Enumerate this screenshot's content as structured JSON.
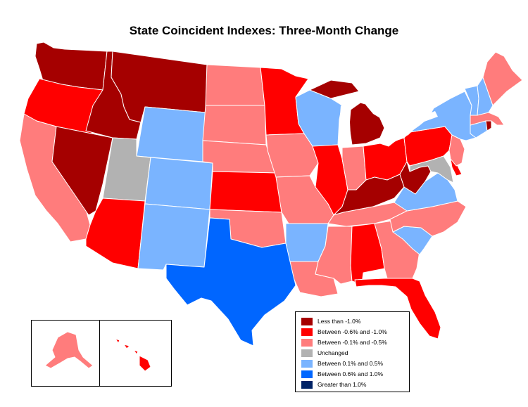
{
  "title": "State Coincident Indexes: Three-Month Change",
  "legend": {
    "items": [
      {
        "key": "lt_-1.0",
        "label": "Less than -1.0%",
        "color": "#a50000"
      },
      {
        "key": "-0.6_-1.0",
        "label": "Between -0.6% and -1.0%",
        "color": "#ff0000"
      },
      {
        "key": "-0.1_-0.5",
        "label": "Between -0.1% and -0.5%",
        "color": "#ff7c7c"
      },
      {
        "key": "unchanged",
        "label": "Unchanged",
        "color": "#b2b2b2"
      },
      {
        "key": "0.1_0.5",
        "label": "Between 0.1% and 0.5%",
        "color": "#7ab4ff"
      },
      {
        "key": "0.6_1.0",
        "label": "Between 0.6% and 1.0%",
        "color": "#0066ff"
      },
      {
        "key": "gt_1.0",
        "label": "Greater than 1.0%",
        "color": "#002266"
      }
    ]
  },
  "states": {
    "WA": "lt_-1.0",
    "OR": "-0.6_-1.0",
    "CA": "-0.1_-0.5",
    "NV": "lt_-1.0",
    "ID": "lt_-1.0",
    "MT": "lt_-1.0",
    "WY": "0.1_0.5",
    "UT": "unchanged",
    "AZ": "-0.6_-1.0",
    "CO": "0.1_0.5",
    "NM": "0.1_0.5",
    "ND": "-0.1_-0.5",
    "SD": "-0.1_-0.5",
    "NE": "-0.1_-0.5",
    "KS": "-0.6_-1.0",
    "OK": "-0.1_-0.5",
    "TX": "0.6_1.0",
    "MN": "-0.6_-1.0",
    "IA": "-0.1_-0.5",
    "MO": "-0.1_-0.5",
    "AR": "0.1_0.5",
    "LA": "-0.1_-0.5",
    "WI": "0.1_0.5",
    "IL": "-0.6_-1.0",
    "MI": "lt_-1.0",
    "IN": "-0.1_-0.5",
    "OH": "-0.6_-1.0",
    "KY": "lt_-1.0",
    "TN": "-0.1_-0.5",
    "MS": "-0.1_-0.5",
    "AL": "-0.6_-1.0",
    "GA": "-0.1_-0.5",
    "FL": "-0.6_-1.0",
    "SC": "0.1_0.5",
    "NC": "-0.1_-0.5",
    "VA": "0.1_0.5",
    "WV": "lt_-1.0",
    "MD": "unchanged",
    "DE": "-0.6_-1.0",
    "PA": "-0.6_-1.0",
    "NJ": "-0.1_-0.5",
    "NY": "0.1_0.5",
    "CT": "0.1_0.5",
    "RI": "lt_-1.0",
    "MA": "-0.1_-0.5",
    "VT": "0.1_0.5",
    "NH": "0.1_0.5",
    "ME": "-0.1_-0.5",
    "AK": "-0.1_-0.5",
    "HI": "-0.6_-1.0"
  }
}
